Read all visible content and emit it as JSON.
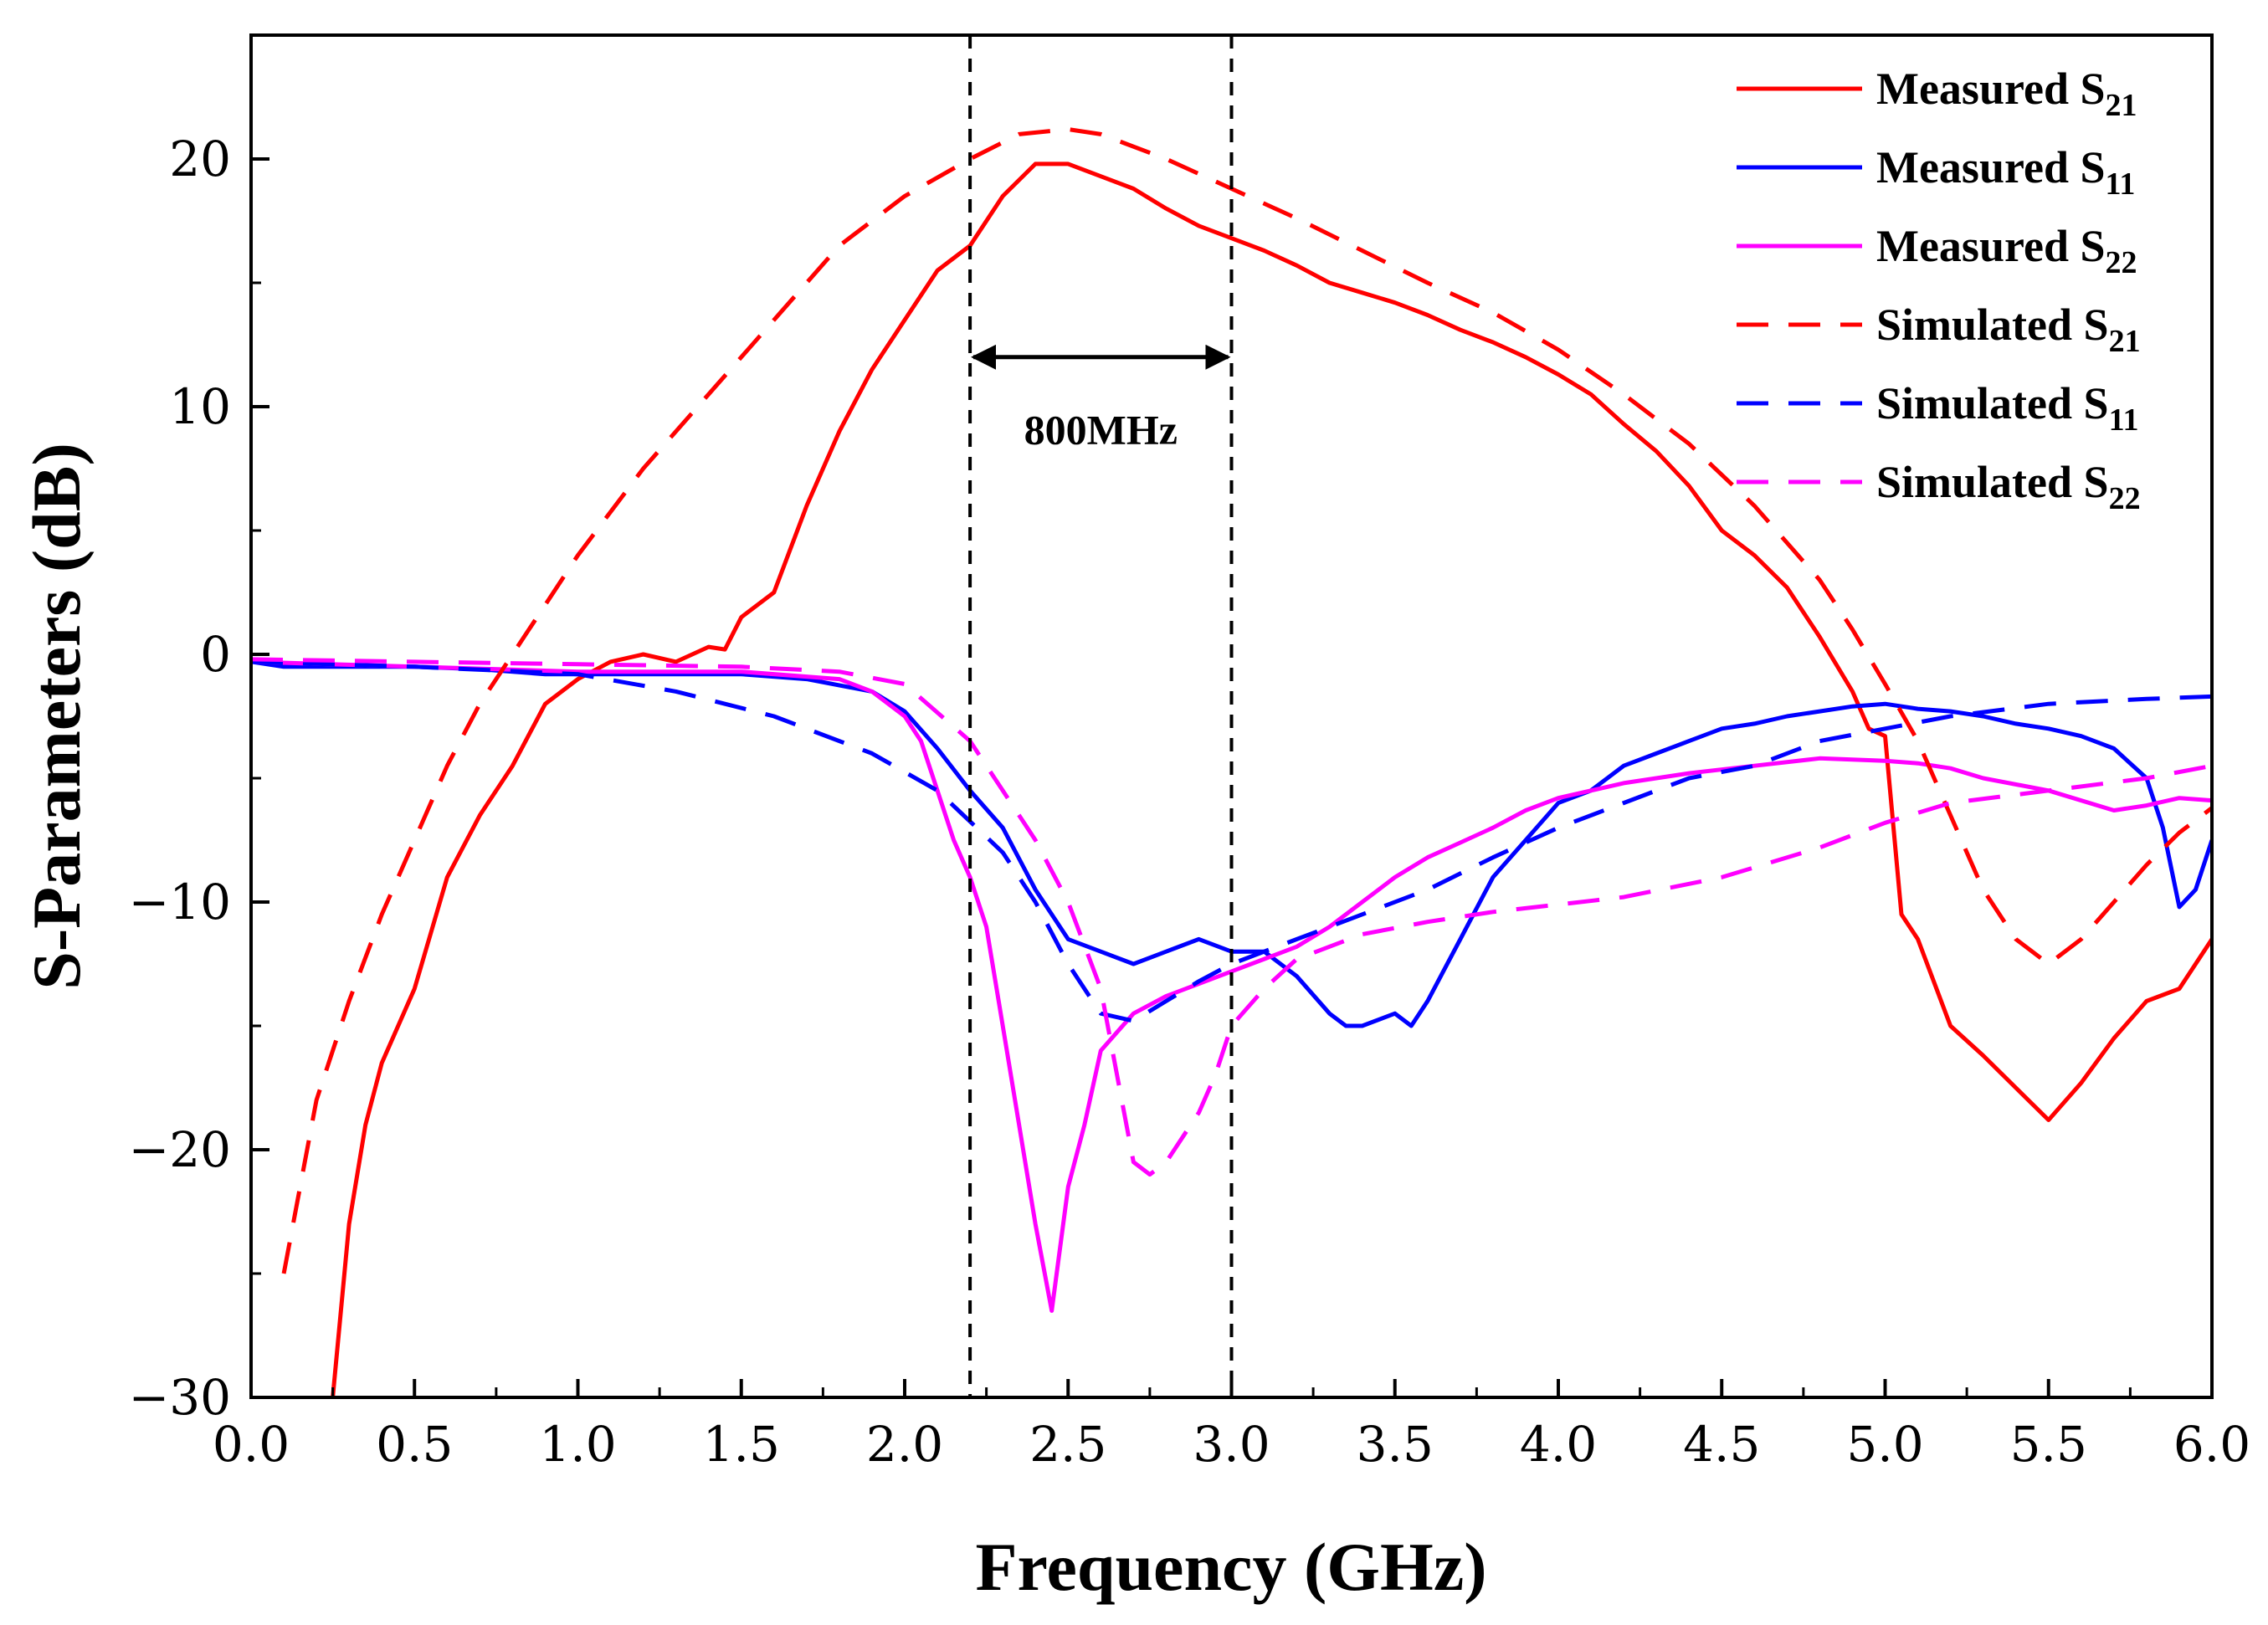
{
  "chart_data": {
    "type": "line",
    "xlabel": "Frequency (GHz)",
    "ylabel": "S-Parameters (dB)",
    "xlim": [
      0,
      6
    ],
    "ylim": [
      -30,
      25
    ],
    "xticks": [
      0,
      0.5,
      1,
      1.5,
      2,
      2.5,
      3,
      3.5,
      4,
      4.5,
      5,
      5.5,
      6
    ],
    "xtick_labels": [
      "0.0",
      "0.5",
      "1.0",
      "1.5",
      "2.0",
      "2.5",
      "3.0",
      "3.5",
      "4.0",
      "4.5",
      "5.0",
      "5.5",
      "6.0"
    ],
    "yticks": [
      -30,
      -20,
      -10,
      0,
      10,
      20
    ],
    "ytick_labels": [
      "−30",
      "−20",
      "−10",
      "0",
      "10",
      "20"
    ],
    "grid": false,
    "legend_position": "top-right",
    "annotation": {
      "label": "800MHz",
      "x_start": 2.2,
      "x_end": 3.0,
      "arrow_y": 12,
      "label_y": 8.5
    },
    "series": [
      {
        "name": "Measured S21",
        "name_main": "Measured S",
        "name_sub": "21",
        "color": "#ff0000",
        "dash": "solid",
        "x": [
          0.25,
          0.3,
          0.35,
          0.4,
          0.5,
          0.6,
          0.7,
          0.8,
          0.9,
          1.0,
          1.1,
          1.2,
          1.3,
          1.4,
          1.45,
          1.5,
          1.6,
          1.7,
          1.8,
          1.9,
          2.0,
          2.1,
          2.2,
          2.3,
          2.4,
          2.5,
          2.6,
          2.7,
          2.8,
          2.9,
          3.0,
          3.1,
          3.2,
          3.3,
          3.4,
          3.5,
          3.6,
          3.7,
          3.8,
          3.9,
          4.0,
          4.1,
          4.2,
          4.3,
          4.4,
          4.5,
          4.6,
          4.7,
          4.8,
          4.9,
          4.95,
          5.0,
          5.05,
          5.1,
          5.2,
          5.3,
          5.4,
          5.5,
          5.6,
          5.7,
          5.8,
          5.9,
          6.0
        ],
        "y": [
          -30,
          -23,
          -19,
          -16.5,
          -13.5,
          -9,
          -6.5,
          -4.5,
          -2,
          -1,
          -0.3,
          0,
          -0.3,
          0.3,
          0.2,
          1.5,
          2.5,
          6,
          9,
          11.5,
          13.5,
          15.5,
          16.5,
          18.5,
          19.8,
          19.8,
          19.3,
          18.8,
          18.0,
          17.3,
          16.8,
          16.3,
          15.7,
          15.0,
          14.6,
          14.2,
          13.7,
          13.1,
          12.6,
          12.0,
          11.3,
          10.5,
          9.3,
          8.2,
          6.8,
          5.0,
          4.0,
          2.7,
          0.7,
          -1.5,
          -3.0,
          -3.3,
          -10.5,
          -11.5,
          -15.0,
          -16.2,
          -17.5,
          -18.8,
          -17.3,
          -15.5,
          -14.0,
          -13.5,
          -11.5
        ]
      },
      {
        "name": "Measured S11",
        "name_main": "Measured S",
        "name_sub": "11",
        "color": "#0000ff",
        "dash": "solid",
        "x": [
          0,
          0.1,
          0.3,
          0.5,
          0.7,
          0.9,
          1.1,
          1.3,
          1.5,
          1.7,
          1.9,
          2.0,
          2.1,
          2.2,
          2.3,
          2.4,
          2.5,
          2.6,
          2.7,
          2.8,
          2.9,
          3.0,
          3.1,
          3.2,
          3.3,
          3.35,
          3.4,
          3.5,
          3.55,
          3.6,
          3.7,
          3.8,
          3.9,
          4.0,
          4.1,
          4.2,
          4.3,
          4.4,
          4.5,
          4.6,
          4.7,
          4.8,
          4.9,
          5.0,
          5.1,
          5.2,
          5.3,
          5.4,
          5.5,
          5.6,
          5.7,
          5.8,
          5.85,
          5.9,
          5.95,
          6.0
        ],
        "y": [
          -0.3,
          -0.5,
          -0.5,
          -0.5,
          -0.6,
          -0.8,
          -0.8,
          -0.8,
          -0.8,
          -1.0,
          -1.5,
          -2.3,
          -3.8,
          -5.5,
          -7.0,
          -9.5,
          -11.5,
          -12.0,
          -12.5,
          -12.0,
          -11.5,
          -12.0,
          -12.0,
          -13.0,
          -14.5,
          -15.0,
          -15.0,
          -14.5,
          -15.0,
          -14.0,
          -11.5,
          -9.0,
          -7.5,
          -6.0,
          -5.5,
          -4.5,
          -4.0,
          -3.5,
          -3.0,
          -2.8,
          -2.5,
          -2.3,
          -2.1,
          -2.0,
          -2.2,
          -2.3,
          -2.5,
          -2.8,
          -3.0,
          -3.3,
          -3.8,
          -5.0,
          -7.0,
          -10.2,
          -9.5,
          -7.5
        ]
      },
      {
        "name": "Measured S22",
        "name_main": "Measured S",
        "name_sub": "22",
        "color": "#ff00ff",
        "dash": "solid",
        "x": [
          0,
          0.5,
          1.0,
          1.5,
          1.8,
          1.9,
          2.0,
          2.05,
          2.1,
          2.15,
          2.2,
          2.25,
          2.3,
          2.35,
          2.4,
          2.45,
          2.5,
          2.55,
          2.6,
          2.7,
          2.8,
          2.9,
          3.0,
          3.1,
          3.2,
          3.3,
          3.4,
          3.5,
          3.6,
          3.7,
          3.8,
          3.9,
          4.0,
          4.2,
          4.4,
          4.6,
          4.8,
          5.0,
          5.1,
          5.2,
          5.3,
          5.5,
          5.7,
          5.8,
          5.9,
          6.0
        ],
        "y": [
          -0.3,
          -0.5,
          -0.7,
          -0.7,
          -1.0,
          -1.5,
          -2.5,
          -3.5,
          -5.5,
          -7.5,
          -9.0,
          -11.0,
          -15.0,
          -19.0,
          -23.0,
          -26.5,
          -21.5,
          -19.0,
          -16.0,
          -14.5,
          -13.8,
          -13.3,
          -12.8,
          -12.3,
          -11.8,
          -11.0,
          -10.0,
          -9.0,
          -8.2,
          -7.6,
          -7.0,
          -6.3,
          -5.8,
          -5.2,
          -4.8,
          -4.5,
          -4.2,
          -4.3,
          -4.4,
          -4.6,
          -5.0,
          -5.5,
          -6.3,
          -6.1,
          -5.8,
          -5.9
        ]
      },
      {
        "name": "Simulated S21",
        "name_main": "Simulated S",
        "name_sub": "21",
        "color": "#ff0000",
        "dash": "dashed",
        "x": [
          0.1,
          0.15,
          0.2,
          0.3,
          0.4,
          0.5,
          0.6,
          0.7,
          0.8,
          0.9,
          1.0,
          1.2,
          1.4,
          1.6,
          1.8,
          2.0,
          2.2,
          2.35,
          2.5,
          2.6,
          2.8,
          3.0,
          3.2,
          3.4,
          3.6,
          3.8,
          4.0,
          4.2,
          4.4,
          4.6,
          4.8,
          4.9,
          5.0,
          5.1,
          5.2,
          5.3,
          5.4,
          5.5,
          5.6,
          5.7,
          5.8,
          5.9,
          6.0
        ],
        "y": [
          -25.0,
          -21.5,
          -18.0,
          -14.0,
          -10.5,
          -7.5,
          -4.5,
          -2.0,
          0,
          2.0,
          4.0,
          7.5,
          10.5,
          13.5,
          16.5,
          18.5,
          20.0,
          21.0,
          21.2,
          21.0,
          20.0,
          18.8,
          17.6,
          16.3,
          15.0,
          13.8,
          12.3,
          10.5,
          8.5,
          6.0,
          3.0,
          1.0,
          -1.2,
          -3.5,
          -6.5,
          -9.5,
          -11.5,
          -12.5,
          -11.5,
          -10.0,
          -8.5,
          -7.2,
          -6.2
        ]
      },
      {
        "name": "Simulated S11",
        "name_main": "Simulated S",
        "name_sub": "11",
        "color": "#0000ff",
        "dash": "dashed",
        "x": [
          0,
          0.5,
          1.0,
          1.3,
          1.6,
          1.9,
          2.1,
          2.3,
          2.4,
          2.5,
          2.6,
          2.7,
          2.8,
          2.9,
          3.0,
          3.2,
          3.4,
          3.6,
          3.8,
          4.0,
          4.2,
          4.4,
          4.6,
          4.8,
          5.0,
          5.2,
          5.5,
          5.8,
          6.0
        ],
        "y": [
          -0.3,
          -0.5,
          -0.8,
          -1.5,
          -2.5,
          -4.0,
          -5.5,
          -8.0,
          -10.0,
          -12.5,
          -14.5,
          -14.8,
          -14.0,
          -13.2,
          -12.5,
          -11.5,
          -10.5,
          -9.5,
          -8.2,
          -7.0,
          -6.0,
          -5.0,
          -4.5,
          -3.5,
          -3.0,
          -2.5,
          -2.0,
          -1.8,
          -1.7
        ]
      },
      {
        "name": "Simulated S22",
        "name_main": "Simulated S",
        "name_sub": "22",
        "color": "#ff00ff",
        "dash": "dashed",
        "x": [
          0,
          0.5,
          1.0,
          1.5,
          1.8,
          2.0,
          2.2,
          2.3,
          2.4,
          2.5,
          2.6,
          2.65,
          2.7,
          2.75,
          2.8,
          2.9,
          2.95,
          3.0,
          3.1,
          3.2,
          3.4,
          3.6,
          3.8,
          4.0,
          4.2,
          4.5,
          4.8,
          5.0,
          5.2,
          5.5,
          5.8,
          6.0
        ],
        "y": [
          -0.2,
          -0.3,
          -0.4,
          -0.5,
          -0.7,
          -1.2,
          -3.5,
          -5.5,
          -7.5,
          -10.0,
          -13.5,
          -17.0,
          -20.5,
          -21.0,
          -20.5,
          -18.5,
          -17.0,
          -15.0,
          -13.5,
          -12.3,
          -11.3,
          -10.8,
          -10.4,
          -10.1,
          -9.8,
          -9.0,
          -7.8,
          -6.8,
          -6.0,
          -5.5,
          -5.0,
          -4.5
        ]
      }
    ]
  }
}
